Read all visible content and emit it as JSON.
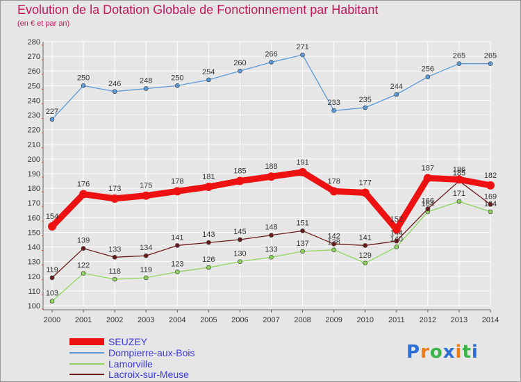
{
  "header": {
    "title": "Evolution de la Dotation Globale de Fonctionnement par Habitant",
    "subtitle": "(en € et par an)"
  },
  "logo": {
    "text": "Proxiti",
    "letters": [
      "P",
      "r",
      "o",
      "x",
      "i",
      "t",
      "i"
    ],
    "colors": [
      "#2a6fd6",
      "#f07a10",
      "#39b54a",
      "#2a6fd6",
      "#f07a10",
      "#39b54a",
      "#2a6fd6"
    ]
  },
  "chart_data": {
    "type": "line",
    "title": "Evolution de la Dotation Globale de Fonctionnement par Habitant",
    "subtitle": "(en € et par an)",
    "x": [
      "2000",
      "2001",
      "2002",
      "2003",
      "2004",
      "2005",
      "2006",
      "2007",
      "2008",
      "2009",
      "2010",
      "2011",
      "2012",
      "2013",
      "2014"
    ],
    "ylim": [
      100,
      280
    ],
    "yticks": [
      100,
      110,
      120,
      130,
      140,
      150,
      160,
      170,
      180,
      190,
      200,
      210,
      220,
      230,
      240,
      250,
      260,
      270,
      280
    ],
    "grid": true,
    "legend_position": "bottom-left",
    "series": [
      {
        "name": "SEUZEY",
        "color": "#ee1111",
        "bold": true,
        "values": [
          154,
          176,
          173,
          175,
          178,
          181,
          185,
          188,
          191,
          178,
          177,
          152,
          187,
          186,
          182
        ]
      },
      {
        "name": "Dompierre-aux-Bois",
        "color": "#5a9ad6",
        "bold": false,
        "values": [
          227,
          250,
          246,
          248,
          250,
          254,
          260,
          266,
          271,
          233,
          235,
          244,
          256,
          265,
          265
        ]
      },
      {
        "name": "Lamorville",
        "color": "#8ed45a",
        "bold": false,
        "values": [
          103,
          122,
          118,
          119,
          123,
          126,
          130,
          133,
          137,
          138,
          129,
          140,
          164,
          171,
          164
        ]
      },
      {
        "name": "Lacroix-sur-Meuse",
        "color": "#6b1a1a",
        "bold": false,
        "values": [
          119,
          139,
          133,
          134,
          141,
          143,
          145,
          148,
          151,
          142,
          141,
          144,
          166,
          185,
          169
        ]
      }
    ]
  }
}
